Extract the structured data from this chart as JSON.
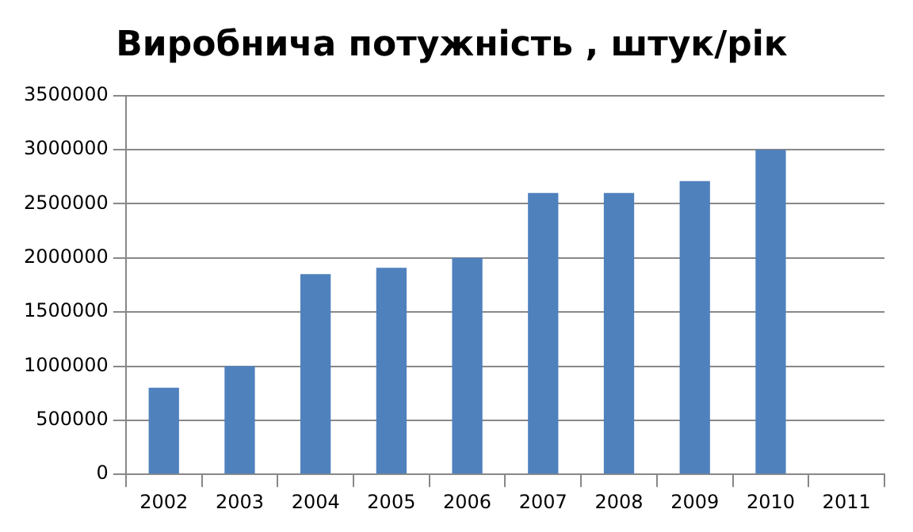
{
  "chart_data": {
    "type": "bar",
    "title": "Виробнича потужність , штук/рік",
    "categories": [
      "2002",
      "2003",
      "2004",
      "2005",
      "2006",
      "2007",
      "2008",
      "2009",
      "2010",
      "2011"
    ],
    "values": [
      800000,
      1000000,
      1850000,
      1910000,
      2000000,
      2600000,
      2600000,
      2710000,
      3000000,
      null
    ],
    "color": "#4f81bd",
    "ylim": [
      0,
      3500000
    ],
    "yticks": [
      0,
      500000,
      1000000,
      1500000,
      2000000,
      2500000,
      3000000,
      3500000
    ],
    "grid": "y",
    "legend": false
  }
}
